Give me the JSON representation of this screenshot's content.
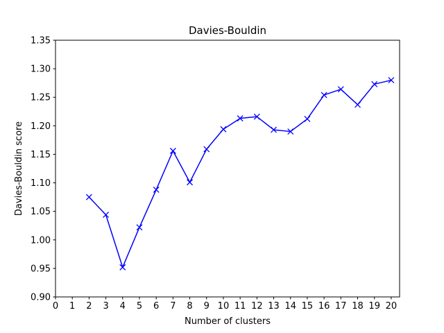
{
  "chart_data": {
    "type": "line",
    "title": "Davies-Bouldin",
    "xlabel": "Number of clusters",
    "ylabel": "Davies-Bouldin score",
    "xlim": [
      0,
      20.5
    ],
    "ylim": [
      0.9,
      1.35
    ],
    "xticks": [
      "0",
      "1",
      "2",
      "3",
      "4",
      "5",
      "6",
      "7",
      "8",
      "9",
      "10",
      "11",
      "12",
      "13",
      "14",
      "15",
      "16",
      "17",
      "18",
      "19",
      "20"
    ],
    "yticks": [
      "0.90",
      "0.95",
      "1.00",
      "1.05",
      "1.10",
      "1.15",
      "1.20",
      "1.25",
      "1.30",
      "1.35"
    ],
    "grid": false,
    "marker": "x",
    "line_color": "#0000ff",
    "series": [
      {
        "x": [
          2,
          3,
          4,
          5,
          6,
          7,
          8,
          9,
          10,
          11,
          12,
          13,
          14,
          15,
          16,
          17,
          18,
          19,
          20
        ],
        "values": [
          1.075,
          1.044,
          0.952,
          1.022,
          1.088,
          1.156,
          1.101,
          1.159,
          1.194,
          1.213,
          1.216,
          1.193,
          1.19,
          1.212,
          1.254,
          1.264,
          1.237,
          1.273,
          1.28
        ]
      }
    ]
  }
}
